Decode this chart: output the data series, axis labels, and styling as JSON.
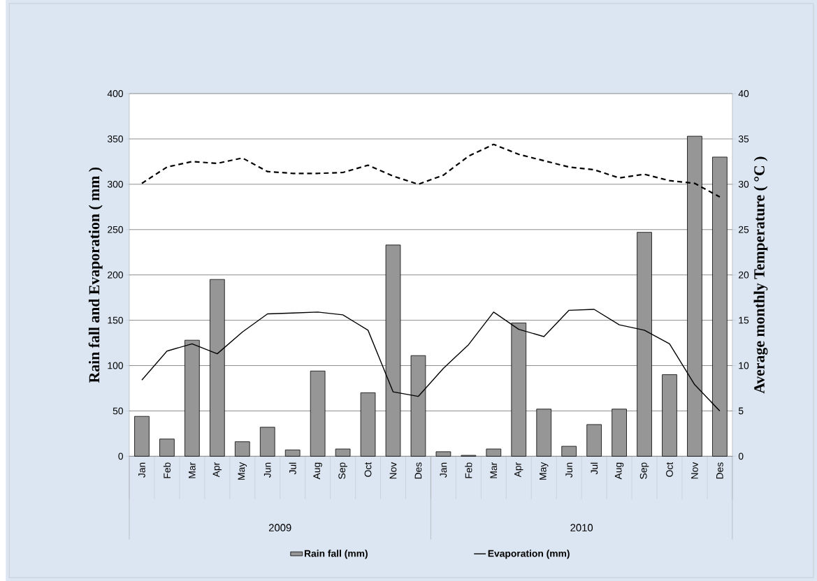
{
  "chart_data": {
    "type": "bar",
    "categories": [
      "Jan",
      "Feb",
      "Mar",
      "Apr",
      "May",
      "Jun",
      "Jul",
      "Aug",
      "Sep",
      "Oct",
      "Nov",
      "Des",
      "Jan",
      "Feb",
      "Mar",
      "Apr",
      "May",
      "Jun",
      "Jul",
      "Aug",
      "Sep",
      "Oct",
      "Nov",
      "Des"
    ],
    "series": [
      {
        "name": "Rain fall (mm)",
        "color": "#969696",
        "values": [
          44,
          19,
          128,
          195,
          16,
          32,
          7,
          94,
          8,
          70,
          233,
          111,
          5,
          1,
          8,
          147,
          52,
          11,
          35,
          52,
          247,
          90,
          353,
          330
        ]
      },
      {
        "name": "Evaporation (mm)",
        "type": "line",
        "color": "#000000",
        "values": [
          84,
          116,
          124,
          113,
          137,
          157,
          158,
          159,
          156,
          139,
          71,
          66,
          97,
          123,
          159,
          140,
          132,
          161,
          162,
          145,
          139,
          124,
          79,
          50
        ]
      },
      {
        "type": "line",
        "axis": "y2",
        "line_style": "dashed",
        "color": "#000000",
        "values": [
          30.1,
          31.9,
          32.5,
          32.3,
          32.9,
          31.4,
          31.2,
          31.2,
          31.3,
          32.1,
          30.9,
          30.0,
          31.0,
          33.1,
          34.4,
          33.3,
          32.6,
          31.9,
          31.6,
          30.7,
          31.1,
          30.4,
          30.1,
          28.6
        ]
      }
    ],
    "ylabel": "Rain fall and Evaporation ( mm )",
    "y2label": "Average monthly Temperature ( °C )",
    "ylim": [
      0,
      400
    ],
    "yticks": [
      0,
      50,
      100,
      150,
      200,
      250,
      300,
      350,
      400
    ],
    "y2lim": [
      0,
      40
    ],
    "y2ticks": [
      0,
      5,
      10,
      15,
      20,
      25,
      30,
      35,
      40
    ],
    "grid": "y",
    "legend": "bottom",
    "annotations": [
      "2009",
      "2010"
    ]
  }
}
